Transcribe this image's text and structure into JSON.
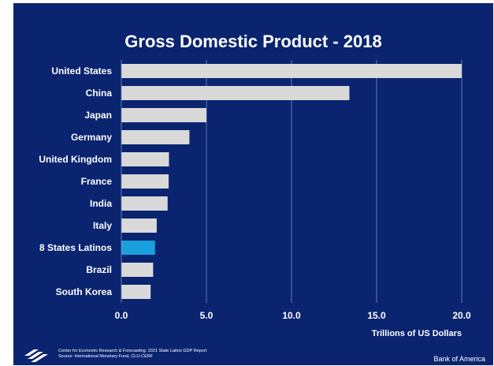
{
  "chart_data": {
    "type": "bar",
    "orientation": "horizontal",
    "title": "Gross Domestic Product - 2018",
    "xlabel": "Trillions of US Dollars",
    "ylabel": "",
    "categories": [
      "United States",
      "China",
      "Japan",
      "Germany",
      "United Kingdom",
      "France",
      "India",
      "Italy",
      "8 States Latinos",
      "Brazil",
      "South Korea"
    ],
    "values": [
      20.0,
      13.4,
      5.0,
      4.0,
      2.8,
      2.78,
      2.72,
      2.08,
      1.98,
      1.87,
      1.72
    ],
    "highlight_category": "8 States Latinos",
    "xlim": [
      0,
      20
    ],
    "xticks": [
      0,
      5,
      10,
      15,
      20
    ],
    "xtick_labels": [
      "0.0",
      "5.0",
      "10.0",
      "15.0",
      "20.0"
    ],
    "grid": "vertical",
    "colors": {
      "background": "#0a2470",
      "bar": "#d9d9d9",
      "highlight": "#1aa0dc",
      "text": "#ffffff",
      "grid": "#8090c0"
    }
  },
  "footer": {
    "source_line1": "Center for Economic Research & Forecasting: 2021 State Latino GDP Report",
    "source_line2": "Source: International Monetary Fund, CLU-CERF",
    "brand": "Bank of America",
    "logo_icon": "bank-of-america-flag-icon"
  }
}
